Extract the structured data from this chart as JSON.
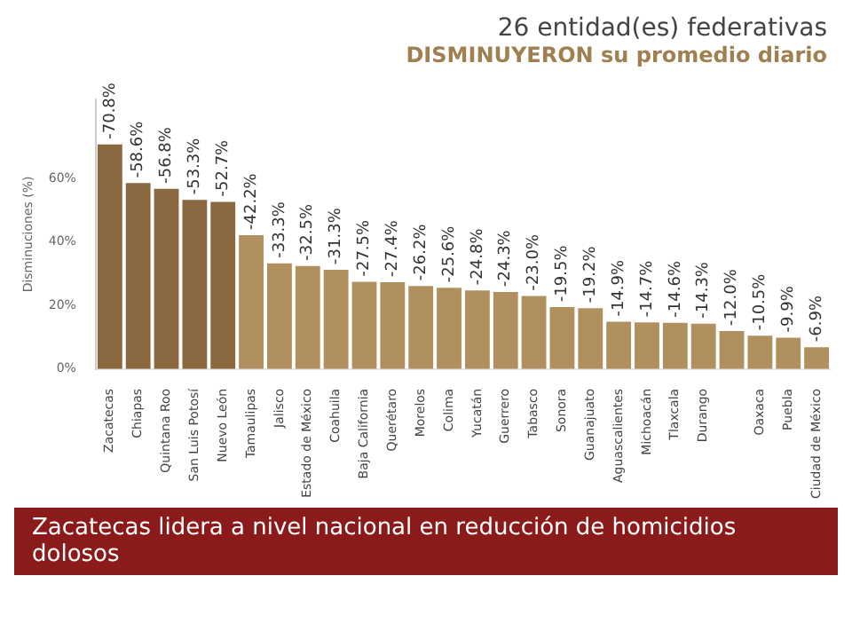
{
  "chart_data": {
    "type": "bar",
    "title": "26 entidad(es) federativas",
    "subtitle": "DISMINUYERON su promedio diario",
    "ylabel": "Disminuciones (%)",
    "categories": [
      "Zacatecas",
      "Chiapas",
      "Quintana Roo",
      "San Luis Potosí",
      "Nuevo León",
      "Tamaulipas",
      "Jalisco",
      "Estado de México",
      "Coahuila",
      "Baja California",
      "Querétaro",
      "Morelos",
      "Colima",
      "Yucatán",
      "Guerrero",
      "Tabasco",
      "Sonora",
      "Guanajuato",
      "Aguascalientes",
      "Michoacán",
      "Tlaxcala",
      "Durango",
      null,
      "Oaxaca",
      "Puebla",
      "Ciudad de México"
    ],
    "values": [
      -70.8,
      -58.6,
      -56.8,
      -53.3,
      -52.7,
      -42.2,
      -33.3,
      -32.5,
      -31.3,
      -27.5,
      -27.4,
      -26.2,
      -25.6,
      -24.8,
      -24.3,
      -23.0,
      -19.5,
      -19.2,
      -14.9,
      -14.7,
      -14.6,
      -14.3,
      -12.0,
      -10.5,
      -9.9,
      -6.9
    ],
    "value_labels": [
      "-70.8%",
      "-58.6%",
      "-56.8%",
      "-53.3%",
      "-52.7%",
      "-42.2%",
      "-33.3%",
      "-32.5%",
      "-31.3%",
      "-27.5%",
      "-27.4%",
      "-26.2%",
      "-25.6%",
      "-24.8%",
      "-24.3%",
      "-23.0%",
      "-19.5%",
      "-19.2%",
      "-14.9%",
      "-14.7%",
      "-14.6%",
      "-14.3%",
      "-12.0%",
      "-10.5%",
      "-9.9%",
      "-6.9%"
    ],
    "colors": [
      "#8a6840",
      "#8a6840",
      "#8a6840",
      "#8a6840",
      "#8a6840",
      "#b0905e",
      "#b0905e",
      "#b0905e",
      "#b0905e",
      "#b0905e",
      "#b0905e",
      "#b0905e",
      "#b0905e",
      "#b0905e",
      "#b0905e",
      "#b0905e",
      "#b0905e",
      "#b0905e",
      "#b0905e",
      "#b0905e",
      "#b0905e",
      "#b0905e",
      "#b0905e",
      "#b0905e",
      "#b0905e",
      "#b0905e"
    ],
    "ylim": [
      0,
      -85
    ],
    "yticks": [
      {
        "value": 0,
        "label": "0%"
      },
      {
        "value": -20,
        "label": "20%"
      },
      {
        "value": -40,
        "label": "40%"
      },
      {
        "value": -60,
        "label": "60%"
      }
    ],
    "grid": false,
    "legend": false,
    "annotations": [
      "Zacatecas lidera a nivel nacional en reducción de homicidios dolosos"
    ]
  }
}
